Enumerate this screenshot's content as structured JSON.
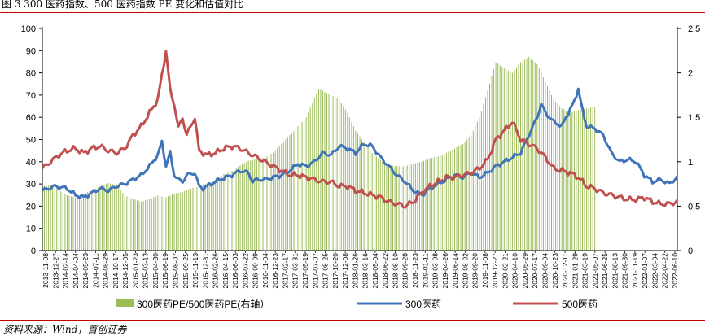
{
  "title": "图 3 300 医药指数、500 医药指数 PE 变化和估值对比",
  "source": "资料来源：Wind，首创证券",
  "chart_data": {
    "type": "line",
    "y_left": {
      "min": 0,
      "max": 100,
      "ticks": [
        0,
        10,
        20,
        30,
        40,
        50,
        60,
        70,
        80,
        90,
        100
      ]
    },
    "y_right": {
      "min": 0,
      "max": 2.5,
      "ticks": [
        0,
        0.5,
        1,
        1.5,
        2,
        2.5
      ]
    },
    "x_tick_labels": [
      "2013-11-08",
      "2013-12-27",
      "2014-02-14",
      "2014-04-04",
      "2014-05-23",
      "2014-07-11",
      "2014-08-29",
      "2014-10-17",
      "2014-12-05",
      "2015-01-23",
      "2015-03-13",
      "2015-04-30",
      "2015-06-19",
      "2015-08-07",
      "2015-09-25",
      "2015-11-13",
      "2015-12-31",
      "2016-02-26",
      "2016-04-15",
      "2016-06-03",
      "2016-07-22",
      "2016-09-09",
      "2016-11-04",
      "2016-12-23",
      "2017-02-17",
      "2017-03-31",
      "2017-05-19",
      "2017-07-07",
      "2017-08-25",
      "2017-10-20",
      "2017-12-08",
      "2018-01-26",
      "2018-03-16",
      "2018-05-04",
      "2018-06-22",
      "2018-08-10",
      "2018-09-28",
      "2018-11-23",
      "2019-01-11",
      "2019-03-08",
      "2019-04-26",
      "2019-06-14",
      "2019-08-02",
      "2019-09-20",
      "2019-11-08",
      "2019-12-27",
      "2020-02-21",
      "2020-04-10",
      "2020-05-29",
      "2020-07-17",
      "2020-09-04",
      "2020-10-23",
      "2020-12-11",
      "2021-01-29",
      "2021-03-19",
      "2021-05-07",
      "2021-06-25",
      "2021-08-13",
      "2021-09-30",
      "2021-11-19",
      "2022-01-07",
      "2022-03-04",
      "2022-04-22",
      "2022-06-10"
    ],
    "series": [
      {
        "name": "300医药PE/500医药PE(右轴）",
        "kind": "bar",
        "axis": "right",
        "color": "#9bbb59",
        "points": [
          [
            0,
            0.72
          ],
          [
            2,
            0.74
          ],
          [
            4,
            0.68
          ],
          [
            6,
            0.62
          ],
          [
            8,
            0.6
          ],
          [
            10,
            0.64
          ],
          [
            12,
            0.68
          ],
          [
            14,
            0.72
          ],
          [
            16,
            0.76
          ],
          [
            18,
            0.74
          ],
          [
            19,
            0.68
          ],
          [
            20,
            0.62
          ],
          [
            22,
            0.58
          ],
          [
            24,
            0.55
          ],
          [
            26,
            0.58
          ],
          [
            28,
            0.62
          ],
          [
            30,
            0.6
          ],
          [
            32,
            0.64
          ],
          [
            34,
            0.66
          ],
          [
            36,
            0.7
          ],
          [
            38,
            0.72
          ],
          [
            40,
            0.76
          ],
          [
            42,
            0.78
          ],
          [
            44,
            0.86
          ],
          [
            46,
            0.9
          ],
          [
            48,
            0.96
          ],
          [
            50,
            1.01
          ],
          [
            52,
            1.03
          ],
          [
            54,
            1.05
          ],
          [
            56,
            1.1
          ],
          [
            58,
            1.2
          ],
          [
            60,
            1.3
          ],
          [
            62,
            1.4
          ],
          [
            64,
            1.5
          ],
          [
            66,
            1.72
          ],
          [
            67,
            1.82
          ],
          [
            68,
            1.8
          ],
          [
            70,
            1.75
          ],
          [
            72,
            1.7
          ],
          [
            74,
            1.55
          ],
          [
            76,
            1.35
          ],
          [
            78,
            1.22
          ],
          [
            80,
            1.1
          ],
          [
            82,
            1.02
          ],
          [
            84,
            0.96
          ],
          [
            86,
            0.95
          ],
          [
            88,
            0.95
          ],
          [
            90,
            0.98
          ],
          [
            92,
            1.0
          ],
          [
            94,
            1.04
          ],
          [
            96,
            1.06
          ],
          [
            98,
            1.1
          ],
          [
            100,
            1.15
          ],
          [
            102,
            1.2
          ],
          [
            104,
            1.3
          ],
          [
            106,
            1.5
          ],
          [
            108,
            1.8
          ],
          [
            110,
            2.12
          ],
          [
            112,
            2.05
          ],
          [
            114,
            2.0
          ],
          [
            116,
            2.12
          ],
          [
            118,
            2.18
          ],
          [
            120,
            2.1
          ],
          [
            122,
            1.9
          ],
          [
            124,
            1.7
          ],
          [
            126,
            1.6
          ],
          [
            128,
            1.55
          ],
          [
            130,
            1.58
          ],
          [
            132,
            1.6
          ],
          [
            134,
            1.62
          ]
        ]
      },
      {
        "name": "300医药",
        "kind": "line",
        "axis": "left",
        "color": "#3f74b9",
        "points": [
          [
            0,
            27
          ],
          [
            3,
            29
          ],
          [
            6,
            28
          ],
          [
            8,
            25
          ],
          [
            10,
            24
          ],
          [
            12,
            26
          ],
          [
            14,
            28
          ],
          [
            16,
            27
          ],
          [
            18,
            29
          ],
          [
            20,
            30
          ],
          [
            22,
            32
          ],
          [
            24,
            34
          ],
          [
            26,
            38
          ],
          [
            28,
            43
          ],
          [
            29,
            49
          ],
          [
            30,
            38
          ],
          [
            31,
            44
          ],
          [
            32,
            34
          ],
          [
            33,
            32
          ],
          [
            34,
            31
          ],
          [
            35,
            34
          ],
          [
            37,
            35
          ],
          [
            38,
            29
          ],
          [
            39,
            28
          ],
          [
            41,
            30
          ],
          [
            43,
            32
          ],
          [
            46,
            34
          ],
          [
            48,
            36
          ],
          [
            50,
            35
          ],
          [
            51,
            31
          ],
          [
            52,
            32
          ],
          [
            54,
            32
          ],
          [
            56,
            33
          ],
          [
            58,
            34
          ],
          [
            60,
            36
          ],
          [
            62,
            39
          ],
          [
            64,
            38
          ],
          [
            66,
            40
          ],
          [
            68,
            44
          ],
          [
            70,
            43
          ],
          [
            72,
            47
          ],
          [
            74,
            46
          ],
          [
            76,
            44
          ],
          [
            78,
            48
          ],
          [
            80,
            47
          ],
          [
            82,
            42
          ],
          [
            84,
            38
          ],
          [
            86,
            34
          ],
          [
            88,
            31
          ],
          [
            90,
            27
          ],
          [
            92,
            25
          ],
          [
            94,
            28
          ],
          [
            96,
            30
          ],
          [
            98,
            32
          ],
          [
            100,
            34
          ],
          [
            102,
            33
          ],
          [
            104,
            35
          ],
          [
            106,
            33
          ],
          [
            108,
            35
          ],
          [
            110,
            38
          ],
          [
            112,
            40
          ],
          [
            114,
            42
          ],
          [
            116,
            44
          ],
          [
            118,
            52
          ],
          [
            120,
            60
          ],
          [
            121,
            66
          ],
          [
            122,
            62
          ],
          [
            124,
            58
          ],
          [
            126,
            56
          ],
          [
            127,
            60
          ],
          [
            129,
            67
          ],
          [
            130,
            73
          ],
          [
            131,
            63
          ],
          [
            132,
            56
          ],
          [
            134,
            55
          ],
          [
            136,
            52
          ],
          [
            138,
            44
          ],
          [
            140,
            40
          ],
          [
            142,
            41
          ],
          [
            144,
            40
          ],
          [
            146,
            34
          ],
          [
            148,
            31
          ],
          [
            150,
            32
          ],
          [
            152,
            30
          ],
          [
            154,
            33
          ]
        ]
      },
      {
        "name": "500医药",
        "kind": "line",
        "axis": "left",
        "color": "#c0504d",
        "points": [
          [
            0,
            37
          ],
          [
            2,
            40
          ],
          [
            4,
            43
          ],
          [
            6,
            45
          ],
          [
            8,
            46
          ],
          [
            10,
            44
          ],
          [
            12,
            46
          ],
          [
            14,
            47
          ],
          [
            16,
            45
          ],
          [
            18,
            44
          ],
          [
            20,
            46
          ],
          [
            22,
            52
          ],
          [
            24,
            56
          ],
          [
            26,
            62
          ],
          [
            28,
            68
          ],
          [
            30,
            90
          ],
          [
            31,
            72
          ],
          [
            32,
            66
          ],
          [
            33,
            55
          ],
          [
            34,
            60
          ],
          [
            35,
            52
          ],
          [
            36,
            56
          ],
          [
            37,
            60
          ],
          [
            38,
            45
          ],
          [
            40,
            43
          ],
          [
            42,
            44
          ],
          [
            44,
            46
          ],
          [
            46,
            47
          ],
          [
            48,
            46
          ],
          [
            50,
            44
          ],
          [
            52,
            42
          ],
          [
            54,
            40
          ],
          [
            56,
            38
          ],
          [
            58,
            36
          ],
          [
            60,
            34
          ],
          [
            62,
            34
          ],
          [
            64,
            33
          ],
          [
            66,
            32
          ],
          [
            68,
            31
          ],
          [
            70,
            31
          ],
          [
            72,
            29
          ],
          [
            74,
            29
          ],
          [
            76,
            27
          ],
          [
            78,
            26
          ],
          [
            80,
            25
          ],
          [
            82,
            24
          ],
          [
            84,
            22
          ],
          [
            86,
            21
          ],
          [
            88,
            20
          ],
          [
            90,
            22
          ],
          [
            92,
            26
          ],
          [
            94,
            29
          ],
          [
            96,
            31
          ],
          [
            98,
            33
          ],
          [
            100,
            33
          ],
          [
            102,
            34
          ],
          [
            104,
            35
          ],
          [
            106,
            37
          ],
          [
            108,
            41
          ],
          [
            110,
            50
          ],
          [
            112,
            54
          ],
          [
            114,
            58
          ],
          [
            116,
            50
          ],
          [
            118,
            48
          ],
          [
            120,
            46
          ],
          [
            122,
            42
          ],
          [
            124,
            37
          ],
          [
            126,
            36
          ],
          [
            128,
            35
          ],
          [
            130,
            33
          ],
          [
            132,
            29
          ],
          [
            134,
            28
          ],
          [
            136,
            26
          ],
          [
            138,
            25
          ],
          [
            140,
            24
          ],
          [
            142,
            23
          ],
          [
            144,
            23
          ],
          [
            146,
            24
          ],
          [
            148,
            22
          ],
          [
            150,
            21
          ],
          [
            152,
            21
          ],
          [
            154,
            22
          ]
        ]
      }
    ],
    "legend_position": "bottom",
    "grid": false
  }
}
